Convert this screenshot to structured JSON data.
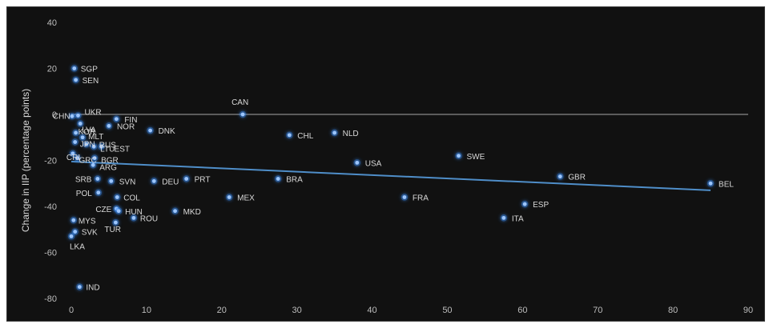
{
  "chart_data": {
    "type": "scatter",
    "title": "",
    "xlabel": "",
    "ylabel": "Change in IIP (percentage points)",
    "xlim": [
      0,
      90
    ],
    "ylim": [
      -80,
      40
    ],
    "x_ticks": [
      "0",
      "10",
      "20",
      "30",
      "40",
      "50",
      "60",
      "70",
      "80",
      "90"
    ],
    "y_ticks": [
      "40",
      "20",
      "0",
      "-20",
      "-40",
      "-60",
      "-80"
    ],
    "grid": false,
    "zero_line": true,
    "trendline": {
      "x": [
        0,
        85
      ],
      "y": [
        -20.5,
        -33
      ]
    },
    "points": [
      {
        "label": "SGP",
        "x": 0.4,
        "y": 20
      },
      {
        "label": "SEN",
        "x": 0.6,
        "y": 15
      },
      {
        "label": "CAN",
        "x": 22.8,
        "y": 0
      },
      {
        "label": "UKR",
        "x": 0.9,
        "y": -0.5
      },
      {
        "label": "CHN",
        "x": 0.1,
        "y": -0.8
      },
      {
        "label": "FIN",
        "x": 6.0,
        "y": -2
      },
      {
        "label": "LVA",
        "x": 1.2,
        "y": -4
      },
      {
        "label": "NOR",
        "x": 5.0,
        "y": -5
      },
      {
        "label": "DNK",
        "x": 10.5,
        "y": -7
      },
      {
        "label": "NLD",
        "x": 35.0,
        "y": -8
      },
      {
        "label": "CHL",
        "x": 29.0,
        "y": -9
      },
      {
        "label": "KOR",
        "x": 0.6,
        "y": -8
      },
      {
        "label": "MLT",
        "x": 1.5,
        "y": -10
      },
      {
        "label": "JPN",
        "x": 0.5,
        "y": -12
      },
      {
        "label": "RUS",
        "x": 2.0,
        "y": -13
      },
      {
        "label": "LTU",
        "x": 3.0,
        "y": -14
      },
      {
        "label": "EST",
        "x": 4.0,
        "y": -14
      },
      {
        "label": "SWE",
        "x": 51.5,
        "y": -18
      },
      {
        "label": "CRI",
        "x": 0.2,
        "y": -17
      },
      {
        "label": "GRC",
        "x": 0.8,
        "y": -19
      },
      {
        "label": "BGR",
        "x": 3.1,
        "y": -19
      },
      {
        "label": "ARG",
        "x": 2.9,
        "y": -22
      },
      {
        "label": "USA",
        "x": 38.0,
        "y": -21
      },
      {
        "label": "GBR",
        "x": 65.0,
        "y": -27
      },
      {
        "label": "BEL",
        "x": 85.0,
        "y": -30
      },
      {
        "label": "SRB",
        "x": 3.5,
        "y": -28
      },
      {
        "label": "SVN",
        "x": 5.3,
        "y": -29
      },
      {
        "label": "DEU",
        "x": 11.0,
        "y": -29
      },
      {
        "label": "PRT",
        "x": 15.3,
        "y": -28
      },
      {
        "label": "BRA",
        "x": 27.5,
        "y": -28
      },
      {
        "label": "POL",
        "x": 3.6,
        "y": -34
      },
      {
        "label": "COL",
        "x": 6.1,
        "y": -36
      },
      {
        "label": "MEX",
        "x": 21.0,
        "y": -36
      },
      {
        "label": "FRA",
        "x": 44.3,
        "y": -36
      },
      {
        "label": "ESP",
        "x": 60.3,
        "y": -39
      },
      {
        "label": "CZE",
        "x": 6.0,
        "y": -41
      },
      {
        "label": "HUN",
        "x": 6.3,
        "y": -42
      },
      {
        "label": "MKD",
        "x": 13.8,
        "y": -42
      },
      {
        "label": "ROU",
        "x": 8.3,
        "y": -45
      },
      {
        "label": "ITA",
        "x": 57.5,
        "y": -45
      },
      {
        "label": "MYS",
        "x": 0.3,
        "y": -46
      },
      {
        "label": "TUR",
        "x": 5.9,
        "y": -47
      },
      {
        "label": "SVK",
        "x": 0.5,
        "y": -51
      },
      {
        "label": "LKA",
        "x": 0.0,
        "y": -53
      },
      {
        "label": "IND",
        "x": 1.1,
        "y": -75
      }
    ],
    "colors": {
      "point": "#9cc6ff",
      "glow": "#3a8df5",
      "trend": "#4f8ec9",
      "axis": "#8a8a8a",
      "background": "#111111"
    }
  }
}
